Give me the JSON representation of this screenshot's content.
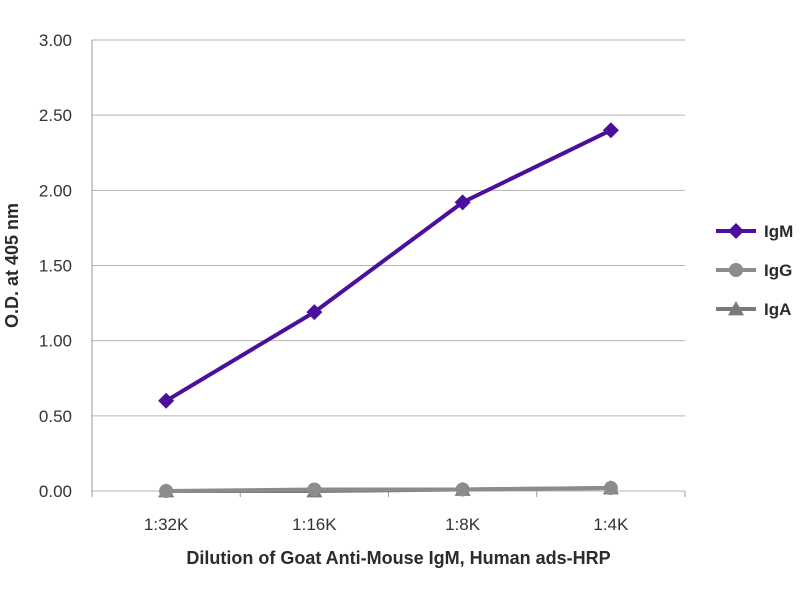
{
  "chart_data": {
    "type": "line",
    "title": "",
    "xlabel": "Dilution of Goat Anti-Mouse IgM, Human ads-HRP",
    "ylabel": "O.D. at 405 nm",
    "categories": [
      "1:32K",
      "1:16K",
      "1:8K",
      "1:4K"
    ],
    "ylim": [
      0,
      3
    ],
    "yticks": [
      "0.00",
      "0.50",
      "1.00",
      "1.50",
      "2.00",
      "2.50",
      "3.00"
    ],
    "grid": true,
    "legend_position": "right",
    "series": [
      {
        "name": "IgM",
        "values": [
          0.6,
          1.19,
          1.92,
          2.4
        ],
        "color": "#4b0f9e",
        "marker": "diamond"
      },
      {
        "name": "IgG",
        "values": [
          0.0,
          0.01,
          0.01,
          0.02
        ],
        "color": "#8c8c8c",
        "marker": "circle"
      },
      {
        "name": "IgA",
        "values": [
          0.0,
          0.0,
          0.01,
          0.02
        ],
        "color": "#7a7a7a",
        "marker": "triangle"
      }
    ]
  }
}
